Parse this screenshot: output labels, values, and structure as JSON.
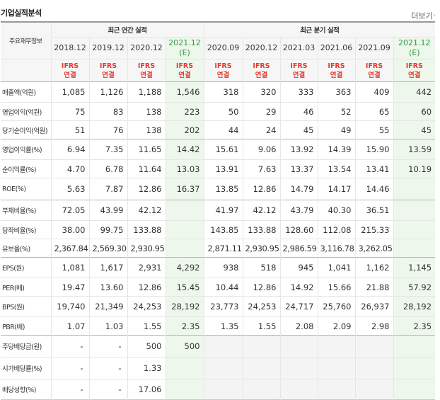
{
  "section_title": "기업실적분석",
  "more_link": "더보기",
  "header": {
    "label_col": "주요재무정보",
    "annual_group": "최근 연간 실적",
    "quarter_group": "최근 분기 실적",
    "periods": [
      {
        "label": "2018.12",
        "est": false
      },
      {
        "label": "2019.12",
        "est": false
      },
      {
        "label": "2020.12",
        "est": false
      },
      {
        "label": "2021.12",
        "sub": "(E)",
        "est": true
      },
      {
        "label": "2020.09",
        "est": false
      },
      {
        "label": "2020.12",
        "est": false
      },
      {
        "label": "2021.03",
        "est": false
      },
      {
        "label": "2021.06",
        "est": false
      },
      {
        "label": "2021.09",
        "est": false
      },
      {
        "label": "2021.12",
        "sub": "(E)",
        "est": true
      }
    ],
    "ifrs": "IFRS",
    "consolidated": "연결"
  },
  "rows": [
    {
      "label": "매출액(억원)",
      "values": [
        "1,085",
        "1,126",
        "1,188",
        "1,546",
        "318",
        "320",
        "333",
        "363",
        "409",
        "442"
      ]
    },
    {
      "label": "영업이익(억원)",
      "values": [
        "75",
        "83",
        "138",
        "223",
        "50",
        "29",
        "46",
        "52",
        "65",
        "60"
      ]
    },
    {
      "label": "당기순이익(억원)",
      "values": [
        "51",
        "76",
        "138",
        "202",
        "44",
        "24",
        "45",
        "49",
        "55",
        "45"
      ]
    },
    {
      "label": "영업이익률(%)",
      "values": [
        "6.94",
        "7.35",
        "11.65",
        "14.42",
        "15.61",
        "9.06",
        "13.92",
        "14.39",
        "15.90",
        "13.59"
      ]
    },
    {
      "label": "순이익률(%)",
      "values": [
        "4.70",
        "6.78",
        "11.64",
        "13.03",
        "13.91",
        "7.63",
        "13.37",
        "13.54",
        "13.41",
        "10.19"
      ]
    },
    {
      "label": "ROE(%)",
      "values": [
        "5.63",
        "7.87",
        "12.86",
        "16.37",
        "13.85",
        "12.86",
        "14.79",
        "14.17",
        "14.46",
        ""
      ]
    },
    {
      "label": "부채비율(%)",
      "values": [
        "72.05",
        "43.99",
        "42.12",
        "",
        "41.97",
        "42.12",
        "43.79",
        "40.30",
        "36.51",
        ""
      ]
    },
    {
      "label": "당좌비율(%)",
      "values": [
        "38.00",
        "99.75",
        "133.88",
        "",
        "143.85",
        "133.88",
        "128.60",
        "112.08",
        "215.33",
        ""
      ]
    },
    {
      "label": "유보율(%)",
      "values": [
        "2,367.84",
        "2,569.30",
        "2,930.95",
        "",
        "2,871.11",
        "2,930.95",
        "2,986.59",
        "3,116.78",
        "3,262.05",
        ""
      ]
    },
    {
      "label": "EPS(원)",
      "values": [
        "1,081",
        "1,617",
        "2,931",
        "4,292",
        "938",
        "518",
        "945",
        "1,041",
        "1,162",
        "1,145"
      ]
    },
    {
      "label": "PER(배)",
      "values": [
        "19.47",
        "13.60",
        "12.86",
        "15.45",
        "10.44",
        "12.86",
        "14.92",
        "15.66",
        "21.88",
        "57.92"
      ]
    },
    {
      "label": "BPS(원)",
      "values": [
        "19,740",
        "21,349",
        "24,253",
        "28,192",
        "23,773",
        "24,253",
        "24,717",
        "25,760",
        "26,937",
        "28,192"
      ]
    },
    {
      "label": "PBR(배)",
      "values": [
        "1.07",
        "1.03",
        "1.55",
        "2.35",
        "1.35",
        "1.55",
        "2.08",
        "2.09",
        "2.98",
        "2.35"
      ]
    },
    {
      "label": "주당배당금(원)",
      "values": [
        "-",
        "-",
        "500",
        "500",
        "",
        "",
        "",
        "",
        "",
        ""
      ]
    },
    {
      "label": "시가배당률(%)",
      "values": [
        "-",
        "-",
        "1.33",
        "",
        "",
        "",
        "",
        "",
        "",
        ""
      ]
    },
    {
      "label": "배당성향(%)",
      "values": [
        "-",
        "-",
        "17.06",
        "",
        "",
        "",
        "",
        "",
        "",
        ""
      ]
    }
  ]
}
